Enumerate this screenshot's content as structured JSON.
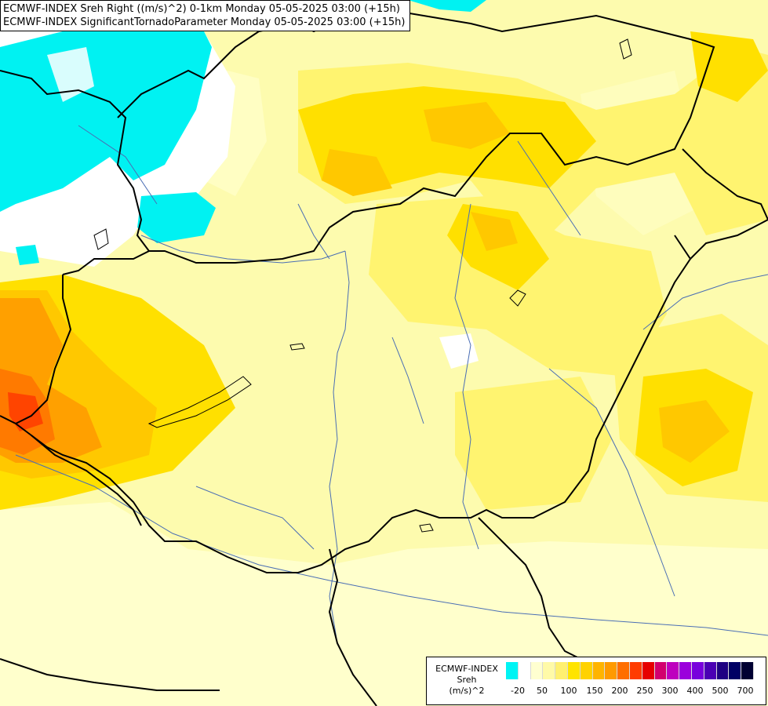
{
  "header": {
    "line1": "ECMWF-INDEX Sreh Right ((m/s)^2) 0-1km Monday 05-05-2025 03:00 (+15h)",
    "line2": "ECMWF-INDEX SignificantTornadoParameter Monday 05-05-2025 03:00 (+15h)"
  },
  "legend": {
    "source": "ECMWF-INDEX",
    "variable": "Sreh",
    "unit": "(m/s)^2",
    "colors": [
      "#00f4f4",
      "#ffffff",
      "#ffffd0",
      "#fffaa8",
      "#fff070",
      "#ffe400",
      "#ffd200",
      "#ffb400",
      "#ff9a00",
      "#ff6e00",
      "#ff3c00",
      "#e60000",
      "#d2006e",
      "#be00be",
      "#9b00dc",
      "#7800dc",
      "#4b00b4",
      "#1e0082",
      "#000064",
      "#000032"
    ],
    "ticks": [
      "-20",
      "50",
      "100",
      "150",
      "200",
      "250",
      "300",
      "400",
      "500",
      "700"
    ]
  },
  "colors": {
    "background": "#fdfbae",
    "cyan": "#00f0f0",
    "border": "#000000",
    "river": "#4a6eb4"
  }
}
